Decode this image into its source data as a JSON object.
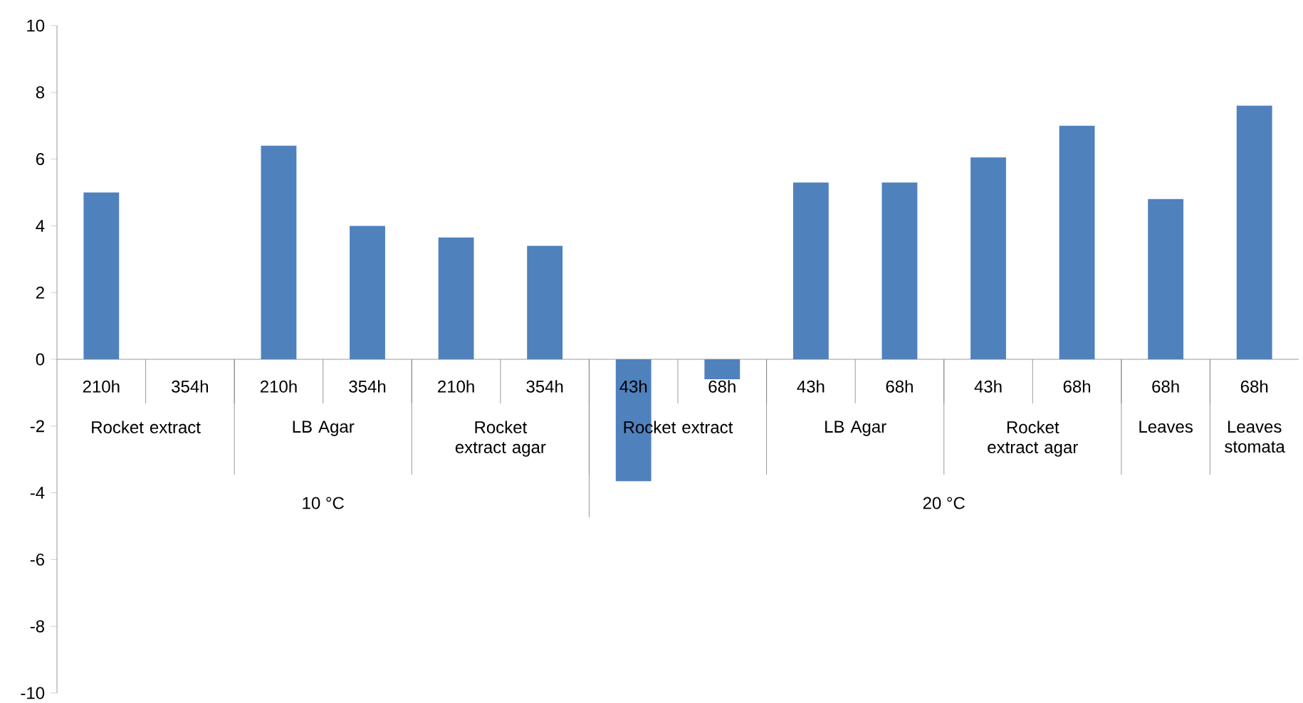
{
  "chart_data": {
    "type": "bar",
    "categories": [
      "210h",
      "354h",
      "210h",
      "354h",
      "210h",
      "354h",
      "43h",
      "68h",
      "43h",
      "68h",
      "43h",
      "68h",
      "68h",
      "68h"
    ],
    "values": [
      5.0,
      0,
      6.4,
      4.0,
      3.65,
      3.4,
      -3.65,
      -0.6,
      5.3,
      5.3,
      6.05,
      7.0,
      4.8,
      7.6
    ],
    "color": "#4f81bd",
    "ylim": [
      -10,
      10
    ],
    "yticks": [
      -10,
      -8,
      -6,
      -4,
      -2,
      0,
      2,
      4,
      6,
      8,
      10
    ],
    "annotations": [
      "Rocket extract",
      "LB Agar",
      "Rocket extract agar",
      "Rocket extract",
      "LB Agar",
      "Rocket extract agar",
      "Leaves",
      "Leaves stomata",
      "10 °C",
      "20 °C"
    ]
  }
}
